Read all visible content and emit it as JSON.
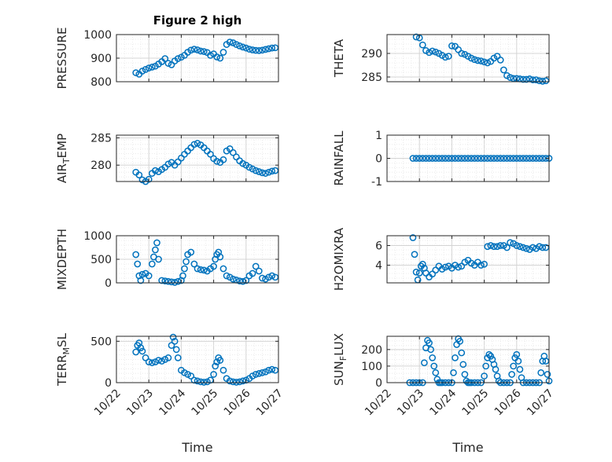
{
  "figure": {
    "title": "Figure 2 high",
    "x_axis_label": "Time",
    "x_tick_labels": [
      "10/22",
      "10/23",
      "10/24",
      "10/25",
      "10/26",
      "10/27"
    ]
  },
  "colors": {
    "marker": "#0072BD",
    "axis": "#262626",
    "grid": "#d9d9d9",
    "background": "#ffffff"
  },
  "chart_data": [
    {
      "type": "scatter",
      "id": "pressure",
      "title": "Figure 2 high",
      "ylabel": "PRESSURE",
      "ylim": [
        800,
        1000
      ],
      "yticks": [
        800,
        900,
        1000
      ],
      "ytick_labels": [
        "800",
        "900",
        "1000"
      ],
      "xlim": [
        0,
        5
      ],
      "grid": true,
      "show_xticks": false,
      "x": [
        0.6,
        0.7,
        0.8,
        0.9,
        1.0,
        1.1,
        1.2,
        1.3,
        1.4,
        1.5,
        1.6,
        1.7,
        1.8,
        1.9,
        2.0,
        2.1,
        2.2,
        2.3,
        2.4,
        2.5,
        2.6,
        2.7,
        2.8,
        2.9,
        3.0,
        3.1,
        3.2,
        3.3,
        3.4,
        3.5,
        3.6,
        3.7,
        3.8,
        3.9,
        4.0,
        4.1,
        4.2,
        4.3,
        4.4,
        4.5,
        4.6,
        4.7,
        4.8,
        4.9
      ],
      "y": [
        838,
        832,
        845,
        852,
        858,
        862,
        866,
        875,
        885,
        898,
        878,
        872,
        888,
        898,
        904,
        912,
        925,
        934,
        938,
        935,
        930,
        928,
        924,
        912,
        918,
        905,
        900,
        925,
        958,
        968,
        965,
        958,
        952,
        947,
        943,
        938,
        935,
        933,
        932,
        934,
        937,
        940,
        943,
        944
      ]
    },
    {
      "type": "scatter",
      "id": "theta",
      "ylabel": "THETA",
      "ylim": [
        284,
        294
      ],
      "yticks": [
        285,
        290
      ],
      "ytick_labels": [
        "285",
        "290"
      ],
      "xlim": [
        0,
        5
      ],
      "grid": true,
      "show_xticks": false,
      "x": [
        0.9,
        1.0,
        1.1,
        1.2,
        1.3,
        1.4,
        1.5,
        1.6,
        1.7,
        1.8,
        1.9,
        2.0,
        2.1,
        2.2,
        2.3,
        2.4,
        2.5,
        2.6,
        2.7,
        2.8,
        2.9,
        3.0,
        3.1,
        3.2,
        3.3,
        3.4,
        3.5,
        3.6,
        3.7,
        3.8,
        3.9,
        4.0,
        4.1,
        4.2,
        4.3,
        4.4,
        4.5,
        4.6,
        4.7,
        4.8,
        4.9
      ],
      "y": [
        293.5,
        293.3,
        291.8,
        290.6,
        290.2,
        290.5,
        290.3,
        290.0,
        289.6,
        289.2,
        289.4,
        291.6,
        291.5,
        290.8,
        290.0,
        289.8,
        289.4,
        289.0,
        288.7,
        288.5,
        288.4,
        288.2,
        288.0,
        288.3,
        289.0,
        289.4,
        288.6,
        286.5,
        285.3,
        284.9,
        284.7,
        284.7,
        284.6,
        284.5,
        284.5,
        284.6,
        284.4,
        284.4,
        284.2,
        284.1,
        284.2
      ]
    },
    {
      "type": "scatter",
      "id": "air_temp",
      "ylabel": "AIR_TEMP",
      "ylim": [
        277,
        285.5
      ],
      "yticks": [
        280,
        285
      ],
      "ytick_labels": [
        "280",
        "285"
      ],
      "xlim": [
        0,
        5
      ],
      "grid": true,
      "show_xticks": false,
      "x": [
        0.6,
        0.7,
        0.8,
        0.9,
        1.0,
        1.1,
        1.2,
        1.3,
        1.4,
        1.5,
        1.6,
        1.7,
        1.8,
        1.9,
        2.0,
        2.1,
        2.2,
        2.3,
        2.4,
        2.5,
        2.6,
        2.7,
        2.8,
        2.9,
        3.0,
        3.1,
        3.2,
        3.3,
        3.4,
        3.5,
        3.6,
        3.7,
        3.8,
        3.9,
        4.0,
        4.1,
        4.2,
        4.3,
        4.4,
        4.5,
        4.6,
        4.7,
        4.8,
        4.9
      ],
      "y": [
        278.7,
        278.2,
        277.3,
        277.0,
        277.4,
        278.5,
        279.0,
        278.8,
        279.2,
        279.6,
        280.2,
        280.5,
        280.0,
        280.6,
        281.3,
        282.0,
        282.6,
        283.2,
        283.8,
        284.0,
        283.7,
        283.2,
        282.6,
        282.0,
        281.2,
        280.7,
        280.5,
        281.0,
        282.6,
        283.0,
        282.3,
        281.5,
        280.8,
        280.3,
        280.0,
        279.6,
        279.3,
        279.0,
        278.8,
        278.6,
        278.5,
        278.7,
        278.9,
        279.0
      ]
    },
    {
      "type": "scatter",
      "id": "rainfall",
      "ylabel": "RAINFALL",
      "ylim": [
        -1,
        1
      ],
      "yticks": [
        -1,
        0,
        1
      ],
      "ytick_labels": [
        "-1",
        "0",
        "1"
      ],
      "xlim": [
        0,
        5
      ],
      "grid": true,
      "show_xticks": false,
      "x": [
        0.8,
        0.9,
        1.0,
        1.1,
        1.2,
        1.3,
        1.4,
        1.5,
        1.6,
        1.7,
        1.8,
        1.9,
        2.0,
        2.1,
        2.2,
        2.3,
        2.4,
        2.5,
        2.6,
        2.7,
        2.8,
        2.9,
        3.0,
        3.1,
        3.2,
        3.3,
        3.4,
        3.5,
        3.6,
        3.7,
        3.8,
        3.9,
        4.0,
        4.1,
        4.2,
        4.3,
        4.4,
        4.5,
        4.6,
        4.7,
        4.8,
        4.9,
        5.0
      ],
      "y": [
        0,
        0,
        0,
        0,
        0,
        0,
        0,
        0,
        0,
        0,
        0,
        0,
        0,
        0,
        0,
        0,
        0,
        0,
        0,
        0,
        0,
        0,
        0,
        0,
        0,
        0,
        0,
        0,
        0,
        0,
        0,
        0,
        0,
        0,
        0,
        0,
        0,
        0,
        0,
        0,
        0,
        0,
        0
      ]
    },
    {
      "type": "scatter",
      "id": "mixdepth",
      "ylabel": "MIXDEPTH",
      "ylim": [
        0,
        1000
      ],
      "yticks": [
        0,
        500,
        1000
      ],
      "ytick_labels": [
        "0",
        "500",
        "1000"
      ],
      "xlim": [
        0,
        5
      ],
      "grid": true,
      "show_xticks": false,
      "x": [
        0.6,
        0.65,
        0.7,
        0.75,
        0.8,
        0.9,
        1.0,
        1.1,
        1.15,
        1.2,
        1.25,
        1.3,
        1.4,
        1.5,
        1.6,
        1.7,
        1.8,
        1.9,
        2.0,
        2.05,
        2.1,
        2.15,
        2.2,
        2.3,
        2.4,
        2.5,
        2.6,
        2.7,
        2.8,
        2.9,
        3.0,
        3.05,
        3.1,
        3.15,
        3.2,
        3.3,
        3.4,
        3.5,
        3.6,
        3.7,
        3.8,
        3.9,
        4.0,
        4.1,
        4.2,
        4.3,
        4.4,
        4.5,
        4.6,
        4.7,
        4.8,
        4.9
      ],
      "y": [
        600,
        400,
        150,
        50,
        180,
        200,
        150,
        400,
        550,
        700,
        850,
        500,
        50,
        40,
        30,
        20,
        10,
        30,
        50,
        150,
        300,
        450,
        600,
        650,
        400,
        300,
        280,
        270,
        250,
        300,
        350,
        500,
        600,
        650,
        550,
        300,
        150,
        120,
        80,
        60,
        40,
        30,
        50,
        150,
        200,
        350,
        250,
        100,
        80,
        120,
        150,
        120
      ]
    },
    {
      "type": "scatter",
      "id": "h2omixra",
      "ylabel": "H2OMIXRA",
      "ylim": [
        2.2,
        7
      ],
      "yticks": [
        4,
        6
      ],
      "ytick_labels": [
        "4",
        "6"
      ],
      "xlim": [
        0,
        5
      ],
      "grid": true,
      "show_xticks": false,
      "x": [
        0.8,
        0.85,
        0.9,
        0.95,
        1.0,
        1.05,
        1.1,
        1.15,
        1.2,
        1.3,
        1.4,
        1.5,
        1.6,
        1.7,
        1.8,
        1.9,
        2.0,
        2.1,
        2.2,
        2.3,
        2.4,
        2.5,
        2.6,
        2.7,
        2.8,
        2.9,
        3.0,
        3.1,
        3.2,
        3.3,
        3.4,
        3.5,
        3.6,
        3.7,
        3.8,
        3.9,
        4.0,
        4.1,
        4.2,
        4.3,
        4.4,
        4.5,
        4.6,
        4.7,
        4.8,
        4.9
      ],
      "y": [
        6.8,
        5.1,
        3.3,
        2.5,
        3.2,
        3.9,
        4.1,
        3.7,
        3.2,
        2.8,
        3.1,
        3.5,
        3.9,
        3.6,
        3.8,
        3.9,
        3.7,
        4.0,
        3.8,
        3.9,
        4.3,
        4.5,
        4.2,
        4.0,
        4.3,
        4.0,
        4.1,
        5.9,
        6.0,
        5.9,
        5.9,
        6.0,
        6.0,
        5.8,
        6.3,
        6.2,
        6.0,
        5.9,
        5.8,
        5.7,
        5.6,
        5.8,
        5.7,
        5.9,
        5.8,
        5.8
      ]
    },
    {
      "type": "scatter",
      "id": "terr_msl",
      "ylabel": "TERR_MSL",
      "ylim": [
        0,
        560
      ],
      "yticks": [
        0,
        500
      ],
      "ytick_labels": [
        "0",
        "500"
      ],
      "xlim": [
        0,
        5
      ],
      "grid": true,
      "show_xticks": true,
      "x": [
        0.6,
        0.65,
        0.7,
        0.75,
        0.8,
        0.9,
        1.0,
        1.1,
        1.2,
        1.3,
        1.4,
        1.5,
        1.6,
        1.7,
        1.75,
        1.8,
        1.85,
        1.9,
        2.0,
        2.1,
        2.2,
        2.3,
        2.4,
        2.5,
        2.6,
        2.7,
        2.8,
        2.9,
        3.0,
        3.05,
        3.1,
        3.15,
        3.2,
        3.3,
        3.4,
        3.5,
        3.6,
        3.7,
        3.8,
        3.9,
        4.0,
        4.1,
        4.2,
        4.3,
        4.4,
        4.5,
        4.6,
        4.7,
        4.8,
        4.9
      ],
      "y": [
        370,
        450,
        480,
        420,
        380,
        300,
        250,
        240,
        250,
        270,
        260,
        280,
        300,
        450,
        550,
        500,
        400,
        300,
        150,
        120,
        100,
        80,
        30,
        20,
        10,
        5,
        10,
        30,
        100,
        200,
        250,
        300,
        270,
        150,
        50,
        20,
        10,
        5,
        10,
        20,
        30,
        50,
        80,
        100,
        110,
        120,
        130,
        150,
        160,
        150
      ]
    },
    {
      "type": "scatter",
      "id": "sun_flux",
      "ylabel": "SUN_FLUX",
      "ylim": [
        0,
        280
      ],
      "yticks": [
        0,
        100,
        200
      ],
      "ytick_labels": [
        "0",
        "100",
        "200"
      ],
      "xlim": [
        0,
        5
      ],
      "grid": true,
      "show_xticks": true,
      "x": [
        0.7,
        0.8,
        0.9,
        1.0,
        1.1,
        1.15,
        1.2,
        1.25,
        1.3,
        1.35,
        1.4,
        1.45,
        1.5,
        1.55,
        1.6,
        1.65,
        1.7,
        1.8,
        1.9,
        2.0,
        2.05,
        2.1,
        2.15,
        2.2,
        2.25,
        2.3,
        2.35,
        2.4,
        2.45,
        2.5,
        2.55,
        2.6,
        2.7,
        2.8,
        2.9,
        3.0,
        3.05,
        3.1,
        3.15,
        3.2,
        3.25,
        3.3,
        3.35,
        3.4,
        3.45,
        3.5,
        3.6,
        3.7,
        3.8,
        3.85,
        3.9,
        3.95,
        4.0,
        4.05,
        4.1,
        4.15,
        4.2,
        4.3,
        4.4,
        4.5,
        4.6,
        4.7,
        4.75,
        4.8,
        4.85,
        4.9,
        4.95,
        5.0
      ],
      "y": [
        0,
        0,
        0,
        0,
        0,
        120,
        210,
        255,
        240,
        200,
        150,
        100,
        60,
        20,
        0,
        0,
        0,
        0,
        0,
        0,
        60,
        150,
        230,
        265,
        250,
        180,
        110,
        50,
        10,
        0,
        0,
        0,
        0,
        0,
        0,
        40,
        100,
        150,
        170,
        160,
        140,
        110,
        80,
        40,
        10,
        0,
        0,
        0,
        0,
        50,
        100,
        150,
        170,
        130,
        80,
        30,
        0,
        0,
        0,
        0,
        0,
        0,
        60,
        130,
        160,
        130,
        50,
        10
      ]
    }
  ]
}
